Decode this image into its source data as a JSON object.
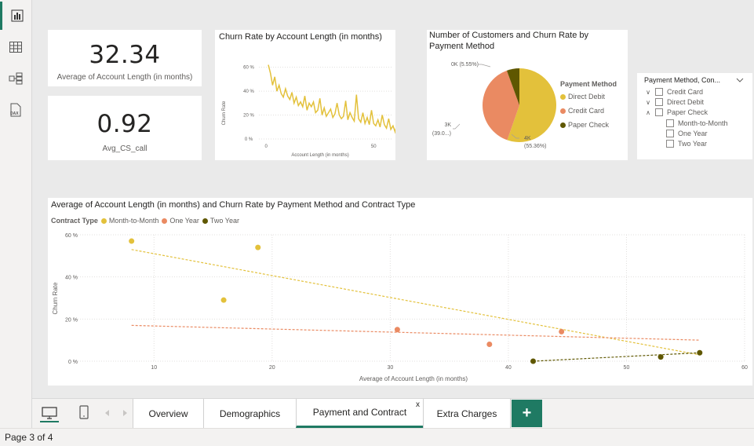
{
  "kpis": {
    "avg_account_length": {
      "value": "32.34",
      "label": "Average of Account Length (in months)"
    },
    "avg_cs_call": {
      "value": "0.92",
      "label": "Avg_CS_call"
    }
  },
  "line_chart": {
    "title": "Churn Rate by Account Length (in months)",
    "ylabel": "Churn Rate",
    "xlabel": "Account Length (in months)",
    "yticks": [
      "60 %",
      "40 %",
      "20 %",
      "0 %"
    ],
    "xticks": [
      "0",
      "50"
    ]
  },
  "pie_chart": {
    "title_line1": "Number of Customers and Churn Rate by",
    "title_line2": "Payment Method",
    "legend_title": "Payment Method",
    "labels": {
      "direct_debit_a": "4K",
      "direct_debit_b": "(55.36%)",
      "credit_card_a": "3K",
      "credit_card_b": "(39.0...)",
      "paper_check": "0K (5.55%)"
    }
  },
  "slicer": {
    "title": "Payment Method, Con...",
    "items": [
      {
        "label": "Credit Card",
        "chevron": "expand"
      },
      {
        "label": "Direct Debit",
        "chevron": "expand"
      },
      {
        "label": "Paper Check",
        "chevron": "collapse"
      },
      {
        "label": "Month-to-Month",
        "chevron": "none"
      },
      {
        "label": "One Year",
        "chevron": "none"
      },
      {
        "label": "Two Year",
        "chevron": "none"
      }
    ]
  },
  "scatter": {
    "title": "Average of Account Length (in months) and Churn Rate by Payment Method and Contract Type",
    "legend_title": "Contract Type",
    "ylabel": "Churn Rate",
    "xlabel": "Average of Account Length (in months)",
    "yticks": [
      "60 %",
      "40 %",
      "20 %",
      "0 %"
    ],
    "xticks": [
      "10",
      "20",
      "30",
      "40",
      "50",
      "60"
    ]
  },
  "tabs": [
    {
      "label": "Overview"
    },
    {
      "label": "Demographics"
    },
    {
      "label": "Payment and Contract",
      "close": "x"
    },
    {
      "label": "Extra Charges"
    }
  ],
  "add_tab": "+",
  "status": {
    "page": "Page 3 of 4"
  },
  "colors": {
    "month": "#e3c13b",
    "one_year": "#ea8a62",
    "two_year": "#5f5700",
    "accent": "#1f7a63"
  },
  "chart_data": [
    {
      "type": "line",
      "title": "Churn Rate by Account Length (in months)",
      "xlabel": "Account Length (in months)",
      "ylabel": "Churn Rate",
      "ylim": [
        0,
        0.65
      ],
      "xlim": [
        -3,
        70
      ],
      "series": [
        {
          "name": "Churn Rate",
          "color": "#e3c13b",
          "x": [
            1,
            2,
            3,
            4,
            5,
            6,
            7,
            8,
            9,
            10,
            11,
            12,
            13,
            14,
            15,
            16,
            17,
            18,
            19,
            20,
            21,
            22,
            23,
            24,
            25,
            26,
            27,
            28,
            29,
            30,
            31,
            32,
            33,
            34,
            35,
            36,
            37,
            38,
            39,
            40,
            41,
            42,
            43,
            44,
            45,
            46,
            47,
            48,
            49,
            50,
            51,
            52,
            53,
            54,
            55,
            56,
            57,
            58,
            59,
            60,
            61,
            62,
            63,
            64,
            65,
            66,
            67,
            68,
            69,
            70,
            71,
            72
          ],
          "values": [
            0.62,
            0.55,
            0.45,
            0.52,
            0.4,
            0.45,
            0.38,
            0.35,
            0.42,
            0.36,
            0.33,
            0.39,
            0.3,
            0.35,
            0.28,
            0.31,
            0.27,
            0.36,
            0.24,
            0.3,
            0.27,
            0.31,
            0.22,
            0.24,
            0.34,
            0.2,
            0.26,
            0.19,
            0.22,
            0.25,
            0.18,
            0.21,
            0.3,
            0.2,
            0.17,
            0.19,
            0.32,
            0.16,
            0.22,
            0.18,
            0.15,
            0.37,
            0.17,
            0.14,
            0.22,
            0.13,
            0.18,
            0.12,
            0.24,
            0.13,
            0.11,
            0.16,
            0.1,
            0.2,
            0.12,
            0.09,
            0.17,
            0.08,
            0.11,
            0.06,
            0.14,
            0.07,
            0.1,
            0.05,
            0.12,
            0.04,
            0.08,
            0.04,
            0.09,
            0.02,
            0.12,
            0.02
          ]
        }
      ]
    },
    {
      "type": "pie",
      "title": "Number of Customers and Churn Rate by Payment Method",
      "legend": [
        "Direct Debit",
        "Credit Card",
        "Paper Check"
      ],
      "values": [
        55.36,
        39.09,
        5.55
      ],
      "colors": [
        "#e3c13b",
        "#ea8a62",
        "#5f5700"
      ]
    },
    {
      "type": "scatter",
      "title": "Average of Account Length (in months) and Churn Rate by Payment Method and Contract Type",
      "xlabel": "Average of Account Length (in months)",
      "ylabel": "Churn Rate",
      "xlim": [
        5,
        60
      ],
      "ylim": [
        0,
        0.6
      ],
      "series": [
        {
          "name": "Month-to-Month",
          "color": "#e3c13b",
          "x": [
            8.1,
            15.9,
            18.8
          ],
          "y": [
            0.57,
            0.29,
            0.54
          ],
          "trend": [
            [
              8.1,
              0.53
            ],
            [
              56.2,
              0.03
            ]
          ]
        },
        {
          "name": "One Year",
          "color": "#ea8a62",
          "x": [
            30.6,
            38.4,
            44.5
          ],
          "y": [
            0.15,
            0.08,
            0.14
          ],
          "trend": [
            [
              8.1,
              0.17
            ],
            [
              56.2,
              0.1
            ]
          ]
        },
        {
          "name": "Two Year",
          "color": "#5f5700",
          "x": [
            42.1,
            52.9,
            56.2
          ],
          "y": [
            0.0,
            0.02,
            0.04
          ],
          "trend": [
            [
              42.1,
              0.0
            ],
            [
              56.2,
              0.04
            ]
          ]
        }
      ]
    }
  ]
}
